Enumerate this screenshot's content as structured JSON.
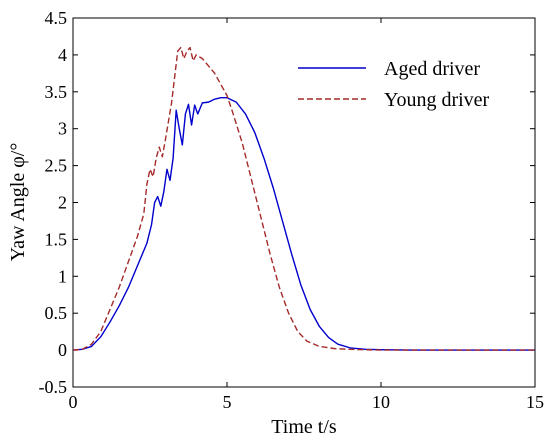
{
  "chart_data": {
    "type": "line",
    "xlabel": "Time t/s",
    "ylabel": "Yaw Angle φ/°",
    "xlim": [
      0,
      15
    ],
    "ylim": [
      -0.5,
      4.5
    ],
    "x_ticks": [
      "0",
      "5",
      "10",
      "15"
    ],
    "y_ticks": [
      "-0.5",
      "0",
      "0.5",
      "1",
      "1.5",
      "2",
      "2.5",
      "3",
      "3.5",
      "4",
      "4.5"
    ],
    "grid": false,
    "legend_position": "top-right",
    "series": [
      {
        "name": "Aged driver",
        "color": "#0000cc",
        "style": "solid",
        "points": [
          [
            0,
            0
          ],
          [
            0.3,
            0.01
          ],
          [
            0.6,
            0.05
          ],
          [
            0.9,
            0.18
          ],
          [
            1.2,
            0.38
          ],
          [
            1.5,
            0.6
          ],
          [
            1.8,
            0.85
          ],
          [
            2.1,
            1.15
          ],
          [
            2.4,
            1.45
          ],
          [
            2.55,
            1.7
          ],
          [
            2.65,
            2.0
          ],
          [
            2.75,
            2.08
          ],
          [
            2.85,
            1.95
          ],
          [
            2.95,
            2.15
          ],
          [
            3.05,
            2.45
          ],
          [
            3.15,
            2.3
          ],
          [
            3.25,
            2.6
          ],
          [
            3.35,
            3.25
          ],
          [
            3.45,
            3.0
          ],
          [
            3.55,
            2.78
          ],
          [
            3.65,
            3.2
          ],
          [
            3.75,
            3.33
          ],
          [
            3.85,
            3.05
          ],
          [
            3.95,
            3.32
          ],
          [
            4.05,
            3.2
          ],
          [
            4.2,
            3.35
          ],
          [
            4.4,
            3.36
          ],
          [
            4.6,
            3.4
          ],
          [
            4.8,
            3.42
          ],
          [
            5.0,
            3.42
          ],
          [
            5.3,
            3.36
          ],
          [
            5.6,
            3.2
          ],
          [
            5.9,
            2.95
          ],
          [
            6.2,
            2.6
          ],
          [
            6.5,
            2.2
          ],
          [
            6.8,
            1.75
          ],
          [
            7.1,
            1.3
          ],
          [
            7.4,
            0.88
          ],
          [
            7.7,
            0.55
          ],
          [
            8.0,
            0.32
          ],
          [
            8.3,
            0.17
          ],
          [
            8.6,
            0.08
          ],
          [
            9.0,
            0.03
          ],
          [
            9.5,
            0.01
          ],
          [
            10.0,
            0.005
          ],
          [
            11.0,
            0
          ],
          [
            13.0,
            0
          ],
          [
            15.0,
            0
          ]
        ]
      },
      {
        "name": "Young driver",
        "color": "#a52a2a",
        "style": "dashed",
        "points": [
          [
            0,
            0
          ],
          [
            0.3,
            0.01
          ],
          [
            0.6,
            0.08
          ],
          [
            0.9,
            0.25
          ],
          [
            1.2,
            0.55
          ],
          [
            1.5,
            0.85
          ],
          [
            1.8,
            1.2
          ],
          [
            2.1,
            1.55
          ],
          [
            2.3,
            1.85
          ],
          [
            2.4,
            2.25
          ],
          [
            2.5,
            2.45
          ],
          [
            2.6,
            2.35
          ],
          [
            2.7,
            2.6
          ],
          [
            2.8,
            2.75
          ],
          [
            2.9,
            2.62
          ],
          [
            3.0,
            2.85
          ],
          [
            3.1,
            3.1
          ],
          [
            3.2,
            3.35
          ],
          [
            3.3,
            3.7
          ],
          [
            3.4,
            4.05
          ],
          [
            3.5,
            4.1
          ],
          [
            3.6,
            3.95
          ],
          [
            3.7,
            4.05
          ],
          [
            3.8,
            4.1
          ],
          [
            3.9,
            3.92
          ],
          [
            4.0,
            4.0
          ],
          [
            4.2,
            3.95
          ],
          [
            4.4,
            3.85
          ],
          [
            4.6,
            3.75
          ],
          [
            4.8,
            3.6
          ],
          [
            5.0,
            3.45
          ],
          [
            5.2,
            3.2
          ],
          [
            5.5,
            2.8
          ],
          [
            5.8,
            2.3
          ],
          [
            6.1,
            1.8
          ],
          [
            6.4,
            1.3
          ],
          [
            6.7,
            0.85
          ],
          [
            7.0,
            0.5
          ],
          [
            7.3,
            0.25
          ],
          [
            7.6,
            0.12
          ],
          [
            8.0,
            0.05
          ],
          [
            8.5,
            0.02
          ],
          [
            9.0,
            0.01
          ],
          [
            10.0,
            0
          ],
          [
            12.0,
            0
          ],
          [
            15.0,
            0
          ]
        ]
      }
    ]
  }
}
